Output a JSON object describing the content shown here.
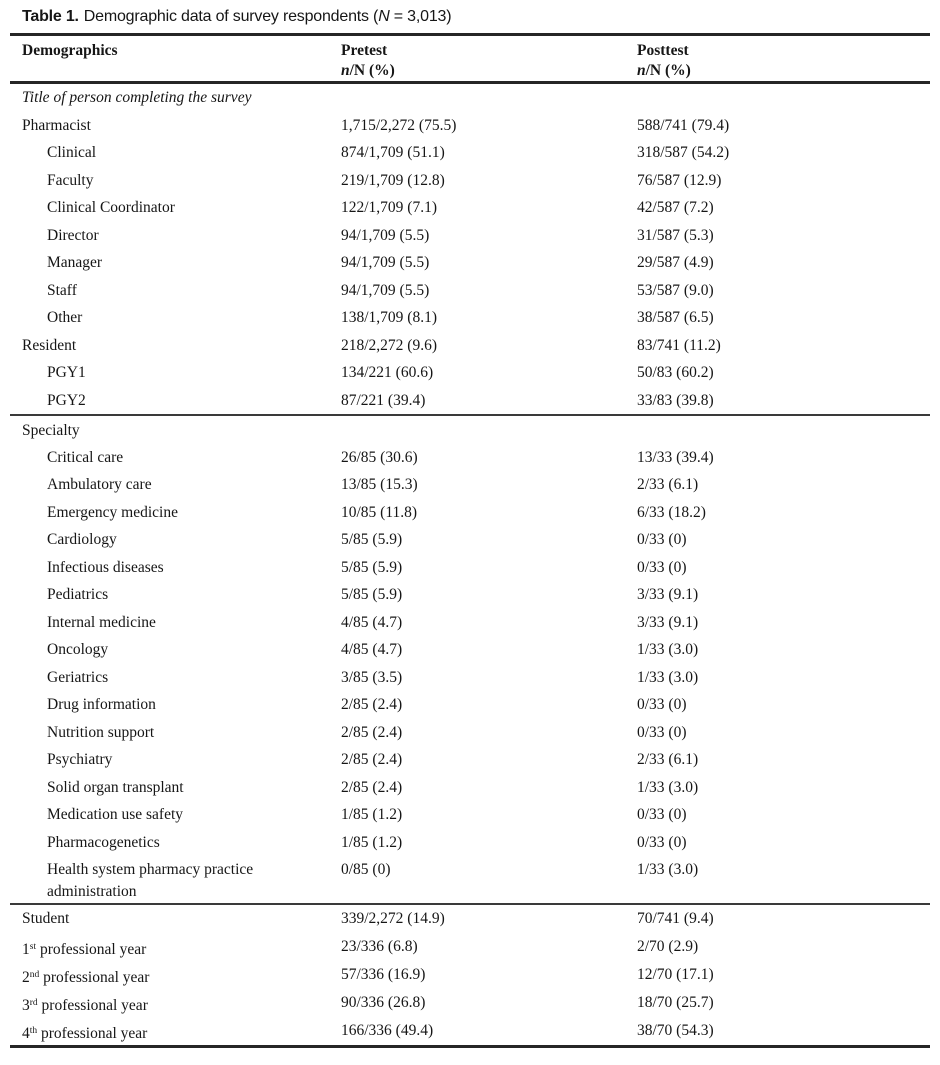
{
  "colors": {
    "ink": "#161616",
    "rule_thick": "#262626",
    "rule_thin": "#3a3a3a"
  },
  "title": {
    "label": "Table 1.",
    "caption_before_n": "Demographic data of survey respondents (",
    "n_symbol": "N",
    "caption_after_n": " = 3,013)"
  },
  "header": {
    "demographics": "Demographics",
    "pretest": "Pretest",
    "posttest": "Posttest",
    "stat_n": "n",
    "stat_rest": "/N (%)"
  },
  "rows": [
    {
      "type": "italic-section",
      "label": "Title of person completing the survey",
      "pretest": "",
      "posttest": ""
    },
    {
      "label": "Pharmacist",
      "indent": false,
      "pretest": "1,715/2,272 (75.5)",
      "posttest": "588/741 (79.4)"
    },
    {
      "label": "Clinical",
      "indent": true,
      "pretest": "874/1,709 (51.1)",
      "posttest": "318/587 (54.2)"
    },
    {
      "label": "Faculty",
      "indent": true,
      "pretest": "219/1,709 (12.8)",
      "posttest": "76/587 (12.9)"
    },
    {
      "label": "Clinical Coordinator",
      "indent": true,
      "pretest": "122/1,709 (7.1)",
      "posttest": "42/587 (7.2)"
    },
    {
      "label": "Director",
      "indent": true,
      "pretest": "94/1,709 (5.5)",
      "posttest": "31/587 (5.3)"
    },
    {
      "label": "Manager",
      "indent": true,
      "pretest": "94/1,709 (5.5)",
      "posttest": "29/587 (4.9)"
    },
    {
      "label": "Staff",
      "indent": true,
      "pretest": "94/1,709 (5.5)",
      "posttest": "53/587 (9.0)"
    },
    {
      "label": "Other",
      "indent": true,
      "pretest": "138/1,709 (8.1)",
      "posttest": "38/587 (6.5)"
    },
    {
      "label": "Resident",
      "indent": false,
      "pretest": "218/2,272 (9.6)",
      "posttest": "83/741 (11.2)"
    },
    {
      "label": "PGY1",
      "indent": true,
      "pretest": "134/221 (60.6)",
      "posttest": "50/83 (60.2)"
    },
    {
      "label": "PGY2",
      "indent": true,
      "pretest": "87/221 (39.4)",
      "posttest": "33/83 (39.8)",
      "rule_after": "thin"
    },
    {
      "type": "section",
      "label": "Specialty",
      "pretest": "",
      "posttest": ""
    },
    {
      "label": "Critical care",
      "indent": true,
      "pretest": "26/85 (30.6)",
      "posttest": "13/33 (39.4)"
    },
    {
      "label": "Ambulatory care",
      "indent": true,
      "pretest": "13/85 (15.3)",
      "posttest": "2/33 (6.1)"
    },
    {
      "label": "Emergency medicine",
      "indent": true,
      "pretest": "10/85 (11.8)",
      "posttest": "6/33 (18.2)"
    },
    {
      "label": "Cardiology",
      "indent": true,
      "pretest": "5/85 (5.9)",
      "posttest": "0/33 (0)"
    },
    {
      "label": "Infectious diseases",
      "indent": true,
      "pretest": "5/85 (5.9)",
      "posttest": "0/33 (0)"
    },
    {
      "label": "Pediatrics",
      "indent": true,
      "pretest": "5/85 (5.9)",
      "posttest": "3/33 (9.1)"
    },
    {
      "label": "Internal medicine",
      "indent": true,
      "pretest": "4/85 (4.7)",
      "posttest": "3/33 (9.1)"
    },
    {
      "label": "Oncology",
      "indent": true,
      "pretest": "4/85 (4.7)",
      "posttest": "1/33 (3.0)"
    },
    {
      "label": "Geriatrics",
      "indent": true,
      "pretest": "3/85 (3.5)",
      "posttest": "1/33 (3.0)"
    },
    {
      "label": "Drug information",
      "indent": true,
      "pretest": "2/85 (2.4)",
      "posttest": "0/33 (0)"
    },
    {
      "label": "Nutrition support",
      "indent": true,
      "pretest": "2/85 (2.4)",
      "posttest": "0/33 (0)"
    },
    {
      "label": "Psychiatry",
      "indent": true,
      "pretest": "2/85 (2.4)",
      "posttest": "2/33 (6.1)"
    },
    {
      "label": "Solid organ transplant",
      "indent": true,
      "pretest": "2/85 (2.4)",
      "posttest": "1/33 (3.0)"
    },
    {
      "label": "Medication use safety",
      "indent": true,
      "pretest": "1/85 (1.2)",
      "posttest": "0/33 (0)"
    },
    {
      "label": "Pharmacogenetics",
      "indent": true,
      "pretest": "1/85 (1.2)",
      "posttest": "0/33 (0)"
    },
    {
      "label": "Health system pharmacy practice administration",
      "indent": true,
      "pretest": "0/85 (0)",
      "posttest": "1/33 (3.0)",
      "rule_after": "thin"
    },
    {
      "label": "Student",
      "indent": false,
      "pretest": "339/2,272 (14.9)",
      "posttest": "70/741 (9.4)"
    },
    {
      "label_start": "1",
      "sup": "st",
      "label_end": " professional year",
      "indent": false,
      "pretest": "23/336 (6.8)",
      "posttest": "2/70 (2.9)"
    },
    {
      "label_start": "2",
      "sup": "nd",
      "label_end": " professional year",
      "indent": false,
      "pretest": "57/336 (16.9)",
      "posttest": "12/70 (17.1)"
    },
    {
      "label_start": "3",
      "sup": "rd",
      "label_end": " professional year",
      "indent": false,
      "pretest": "90/336 (26.8)",
      "posttest": "18/70 (25.7)"
    },
    {
      "label_start": "4",
      "sup": "th",
      "label_end": " professional year",
      "indent": false,
      "pretest": "166/336 (49.4)",
      "posttest": "38/70 (54.3)"
    }
  ]
}
